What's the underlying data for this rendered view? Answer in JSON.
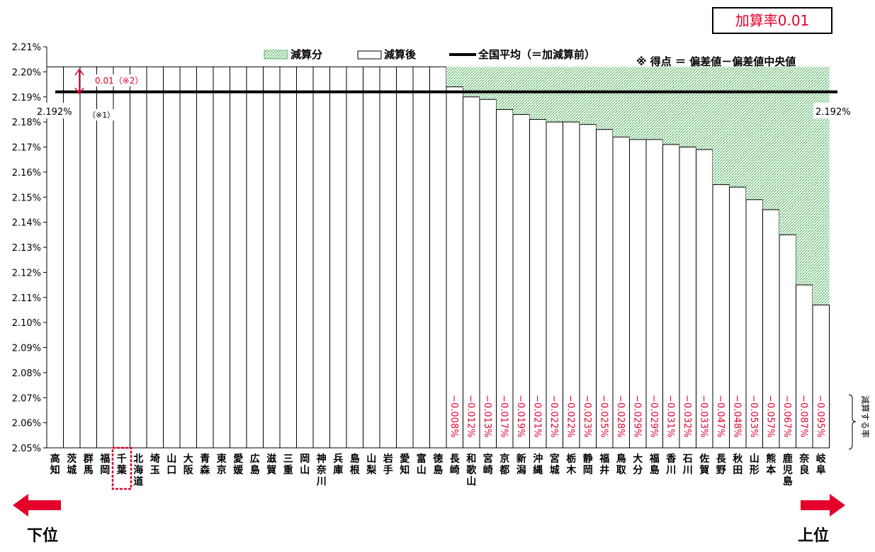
{
  "rate_box": {
    "label": "加算率0.01"
  },
  "legend": {
    "reduction": "減算分",
    "after": "減算後",
    "national": "全国平均（＝加減算前）"
  },
  "note": "※ 得点 ＝ 偏差値－偏差値中央値",
  "annotations": {
    "diff": "0.01（※2）",
    "note1": "（※1）",
    "avg_left": "2.192%",
    "avg_right": "2.192%",
    "reduce_rate": "減算する率"
  },
  "bottom": {
    "lower": "下位",
    "upper": "上位"
  },
  "colors": {
    "reduction_fill": "#8fd49a",
    "national_line": "#000000",
    "rate_text": "#e4002b",
    "highlight": "#e4002b"
  },
  "chart_data": {
    "type": "bar",
    "y_ticks": [
      "2.05%",
      "2.06%",
      "2.07%",
      "2.08%",
      "2.09%",
      "2.10%",
      "2.11%",
      "2.12%",
      "2.13%",
      "2.14%",
      "2.15%",
      "2.16%",
      "2.17%",
      "2.18%",
      "2.19%",
      "2.20%",
      "2.21%"
    ],
    "ylim": [
      2.05,
      2.21
    ],
    "grid": false,
    "legend_position": "top",
    "base_value": 2.202,
    "national_average": 2.192,
    "highlighted_category": "千葉",
    "categories": [
      "高知",
      "茨城",
      "群馬",
      "福岡",
      "千葉",
      "北海道",
      "埼玉",
      "山口",
      "大阪",
      "青森",
      "東京",
      "愛媛",
      "広島",
      "滋賀",
      "三重",
      "岡山",
      "神奈川",
      "兵庫",
      "島根",
      "山梨",
      "岩手",
      "愛知",
      "富山",
      "徳島",
      "長崎",
      "和歌山",
      "宮崎",
      "京都",
      "新潟",
      "沖縄",
      "宮城",
      "栃木",
      "静岡",
      "福井",
      "鳥取",
      "大分",
      "福島",
      "香川",
      "石川",
      "佐賀",
      "長野",
      "秋田",
      "山形",
      "熊本",
      "鹿児島",
      "奈良",
      "岐阜"
    ],
    "series": [
      {
        "name": "減算後",
        "values": [
          2.202,
          2.202,
          2.202,
          2.202,
          2.202,
          2.202,
          2.202,
          2.202,
          2.202,
          2.202,
          2.202,
          2.202,
          2.202,
          2.202,
          2.202,
          2.202,
          2.202,
          2.202,
          2.202,
          2.202,
          2.202,
          2.202,
          2.202,
          2.202,
          2.194,
          2.19,
          2.189,
          2.185,
          2.183,
          2.181,
          2.18,
          2.18,
          2.179,
          2.177,
          2.174,
          2.173,
          2.173,
          2.171,
          2.17,
          2.169,
          2.155,
          2.154,
          2.149,
          2.145,
          2.135,
          2.115,
          2.107
        ]
      },
      {
        "name": "減算分",
        "values": [
          0,
          0,
          0,
          0,
          0,
          0,
          0,
          0,
          0,
          0,
          0,
          0,
          0,
          0,
          0,
          0,
          0,
          0,
          0,
          0,
          0,
          0,
          0,
          0,
          0.008,
          0.012,
          0.013,
          0.017,
          0.019,
          0.021,
          0.022,
          0.022,
          0.023,
          0.025,
          0.028,
          0.029,
          0.029,
          0.031,
          0.032,
          0.033,
          0.047,
          0.048,
          0.053,
          0.057,
          0.067,
          0.087,
          0.095
        ]
      }
    ],
    "reduction_labels": [
      "",
      "",
      "",
      "",
      "",
      "",
      "",
      "",
      "",
      "",
      "",
      "",
      "",
      "",
      "",
      "",
      "",
      "",
      "",
      "",
      "",
      "",
      "",
      "",
      "−0.008%",
      "−0.012%",
      "−0.013%",
      "−0.017%",
      "−0.019%",
      "−0.021%",
      "−0.022%",
      "−0.022%",
      "−0.023%",
      "−0.025%",
      "−0.028%",
      "−0.029%",
      "−0.029%",
      "−0.031%",
      "−0.032%",
      "−0.033%",
      "−0.047%",
      "−0.048%",
      "−0.053%",
      "−0.057%",
      "−0.067%",
      "−0.087%",
      "−0.095%"
    ]
  }
}
